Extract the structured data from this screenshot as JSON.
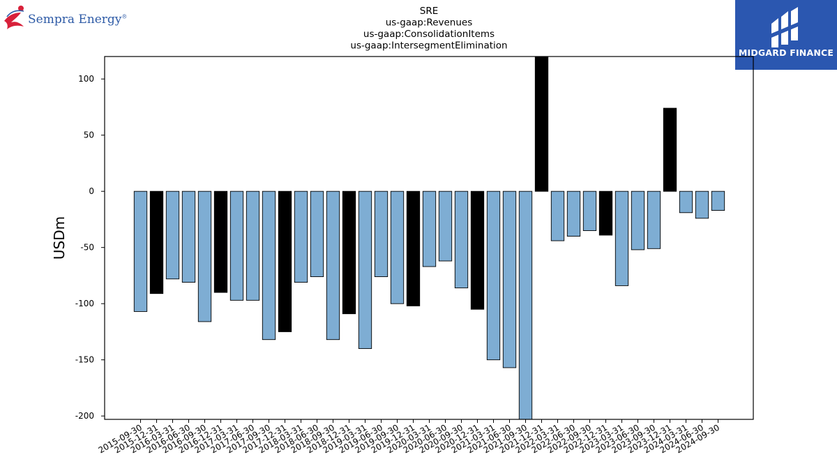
{
  "logos": {
    "left": {
      "name": "Sempra Energy",
      "mark": "®"
    },
    "right": {
      "name": "MIDGARD FINANCE"
    }
  },
  "chart_data": {
    "type": "bar",
    "title_lines": [
      "SRE",
      "us-gaap:Revenues",
      "us-gaap:ConsolidationItems",
      "us-gaap:IntersegmentElimination"
    ],
    "xlabel": "",
    "ylabel": "USDm",
    "ylim": [
      -203,
      120
    ],
    "yticks": [
      100,
      50,
      0,
      -50,
      -100,
      -150,
      -200
    ],
    "grid": false,
    "colors": {
      "quarter": "#7eadd3",
      "year_end": "#000000",
      "edge": "#000000"
    },
    "categories": [
      "2015-09-30",
      "2015-12-31",
      "2016-03-31",
      "2016-06-30",
      "2016-09-30",
      "2016-12-31",
      "2017-03-31",
      "2017-06-30",
      "2017-09-30",
      "2017-12-31",
      "2018-03-31",
      "2018-06-30",
      "2018-09-30",
      "2018-12-31",
      "2019-03-31",
      "2019-06-30",
      "2019-09-30",
      "2019-12-31",
      "2020-03-31",
      "2020-06-30",
      "2020-09-30",
      "2020-12-31",
      "2021-03-31",
      "2021-06-30",
      "2021-09-30",
      "2021-12-31",
      "2022-03-31",
      "2022-06-30",
      "2022-09-30",
      "2022-12-31",
      "2023-03-31",
      "2023-06-30",
      "2023-09-30",
      "2023-12-31",
      "2024-03-31",
      "2024-06-30",
      "2024-09-30"
    ],
    "values": [
      -107,
      -91,
      -78,
      -81,
      -116,
      -90,
      -97,
      -97,
      -132,
      -125,
      -81,
      -76,
      -132,
      -109,
      -140,
      -76,
      -100,
      -102,
      -67,
      -62,
      -86,
      -105,
      -150,
      -157,
      -203,
      120,
      -44,
      -40,
      -35,
      -39,
      -84,
      -52,
      -51,
      74,
      -19,
      -24,
      -17
    ]
  }
}
